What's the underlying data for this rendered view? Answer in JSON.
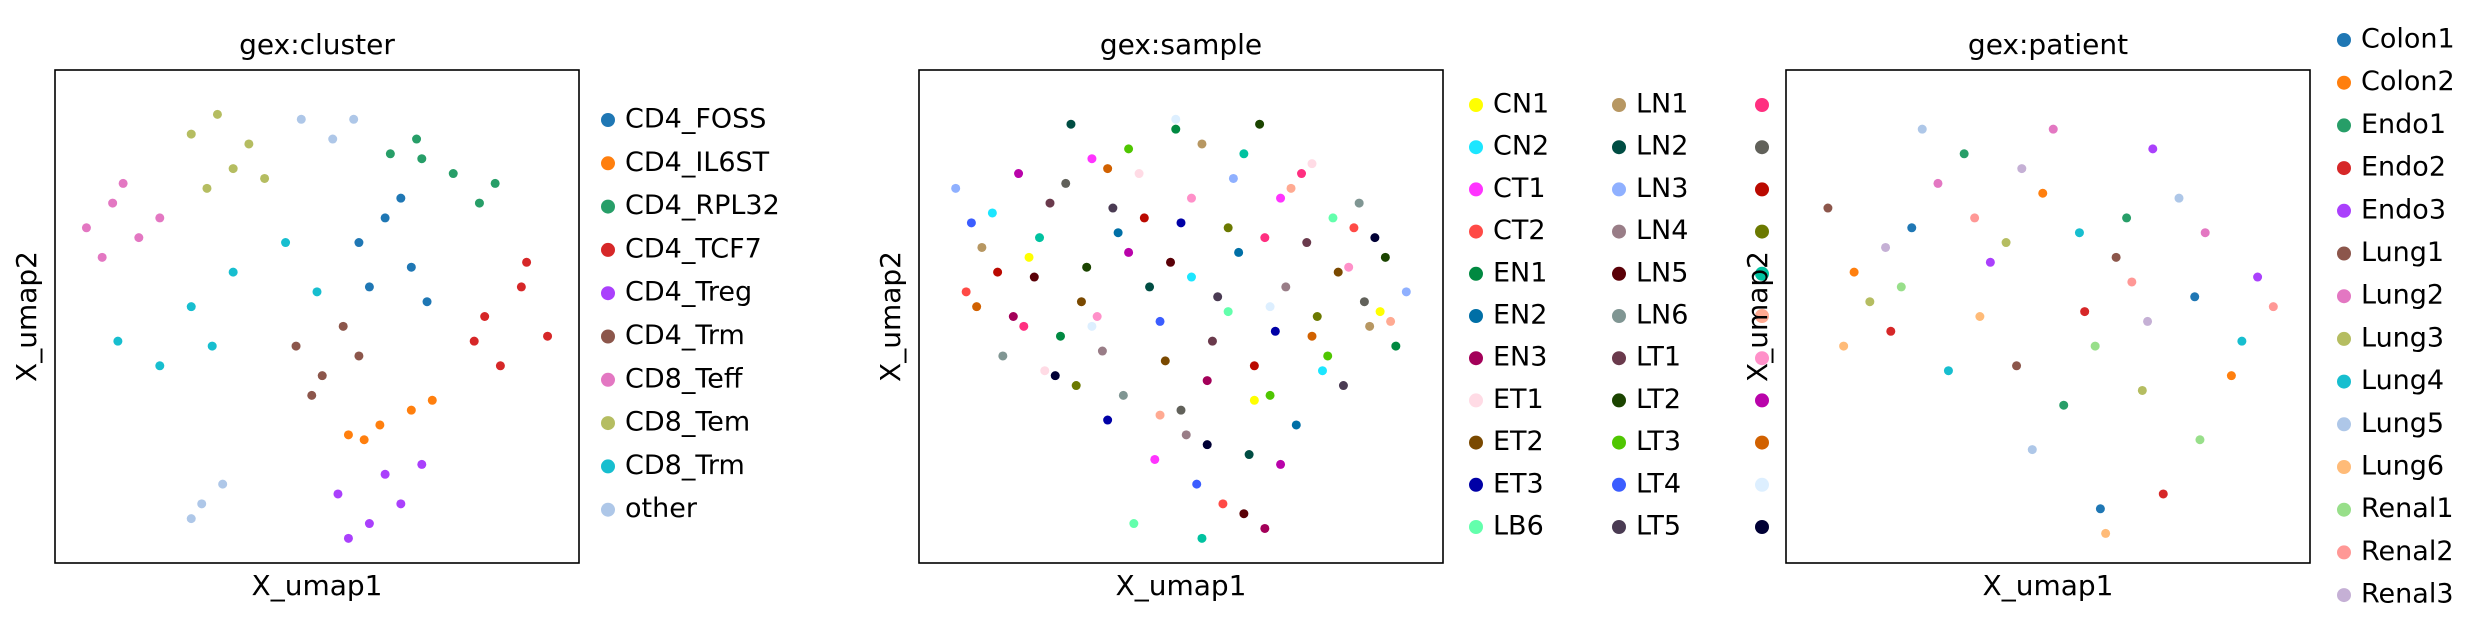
{
  "chart_data": [
    {
      "type": "scatter",
      "title": "gex:cluster",
      "x_label": "X_umap1",
      "y_label": "X_umap2",
      "xlim": [
        0,
        10
      ],
      "ylim": [
        0,
        10
      ],
      "series": [
        {
          "name": "CD4_FOSS",
          "color": "#1f77b4",
          "x": [
            5.8,
            6.3,
            6.8,
            7.1,
            6.0,
            6.6
          ],
          "y": [
            6.5,
            7.0,
            6.0,
            5.3,
            5.6,
            7.4
          ]
        },
        {
          "name": "CD4_IL6ST",
          "color": "#ff7f0e",
          "x": [
            5.6,
            6.2,
            6.8,
            7.2,
            5.9
          ],
          "y": [
            2.6,
            2.8,
            3.1,
            3.3,
            2.5
          ]
        },
        {
          "name": "CD4_RPL32",
          "color": "#279e68",
          "x": [
            6.4,
            7.0,
            7.6,
            8.1,
            8.4,
            6.9
          ],
          "y": [
            8.3,
            8.2,
            7.9,
            7.3,
            7.7,
            8.6
          ]
        },
        {
          "name": "CD4_TCF7",
          "color": "#d62728",
          "x": [
            8.2,
            8.9,
            9.4,
            8.5,
            9.0,
            8.0
          ],
          "y": [
            5.0,
            5.6,
            4.6,
            4.0,
            6.1,
            4.5
          ]
        },
        {
          "name": "CD4_Treg",
          "color": "#aa40fc",
          "x": [
            5.4,
            6.0,
            6.6,
            7.0,
            5.6,
            6.3
          ],
          "y": [
            1.4,
            0.8,
            1.2,
            2.0,
            0.5,
            1.8
          ]
        },
        {
          "name": "CD4_Trm",
          "color": "#8c564b",
          "x": [
            4.6,
            5.1,
            5.5,
            4.9,
            5.8
          ],
          "y": [
            4.4,
            3.8,
            4.8,
            3.4,
            4.2
          ]
        },
        {
          "name": "CD8_Teff",
          "color": "#e377c2",
          "x": [
            0.6,
            1.1,
            1.6,
            0.9,
            2.0,
            1.3
          ],
          "y": [
            6.8,
            7.3,
            6.6,
            6.2,
            7.0,
            7.7
          ]
        },
        {
          "name": "CD8_Tem",
          "color": "#b5bd61",
          "x": [
            2.6,
            3.1,
            3.7,
            2.9,
            4.0,
            3.4
          ],
          "y": [
            8.7,
            9.1,
            8.5,
            7.6,
            7.8,
            8.0
          ]
        },
        {
          "name": "CD8_Trm",
          "color": "#17becf",
          "x": [
            1.2,
            2.0,
            2.6,
            3.4,
            4.4,
            5.0,
            3.0
          ],
          "y": [
            4.5,
            4.0,
            5.2,
            5.9,
            6.5,
            5.5,
            4.4
          ]
        },
        {
          "name": "other",
          "color": "#aec7e8",
          "x": [
            4.7,
            5.3,
            5.7,
            2.8,
            3.2,
            2.6
          ],
          "y": [
            9.0,
            8.6,
            9.0,
            1.2,
            1.6,
            0.9
          ]
        }
      ]
    },
    {
      "type": "scatter",
      "title": "gex:sample",
      "x_label": "X_umap1",
      "y_label": "X_umap2",
      "xlim": [
        0,
        10
      ],
      "ylim": [
        0,
        10
      ],
      "series": [
        {
          "name": "CN1",
          "color": "#ffff00",
          "x": [
            2.1,
            6.4,
            8.8
          ],
          "y": [
            6.2,
            3.3,
            5.1
          ]
        },
        {
          "name": "CN2",
          "color": "#1ce6ff",
          "x": [
            1.4,
            5.2,
            7.7
          ],
          "y": [
            7.1,
            5.8,
            3.9
          ]
        },
        {
          "name": "CT1",
          "color": "#ff34ff",
          "x": [
            3.3,
            6.9,
            4.5
          ],
          "y": [
            8.2,
            7.4,
            2.1
          ]
        },
        {
          "name": "CT2",
          "color": "#ff4a46",
          "x": [
            0.9,
            5.8,
            8.3
          ],
          "y": [
            5.5,
            1.2,
            6.8
          ]
        },
        {
          "name": "EN1",
          "color": "#008941",
          "x": [
            2.7,
            4.9,
            9.1
          ],
          "y": [
            4.6,
            8.8,
            4.4
          ]
        },
        {
          "name": "EN2",
          "color": "#006fa6",
          "x": [
            3.8,
            6.1,
            7.2
          ],
          "y": [
            6.7,
            6.3,
            2.8
          ]
        },
        {
          "name": "EN3",
          "color": "#a30059",
          "x": [
            1.8,
            5.5,
            6.6
          ],
          "y": [
            5.0,
            3.7,
            0.7
          ]
        },
        {
          "name": "ET1",
          "color": "#ffdbe5",
          "x": [
            4.2,
            7.5,
            2.4
          ],
          "y": [
            7.9,
            8.1,
            3.9
          ]
        },
        {
          "name": "ET2",
          "color": "#7a4900",
          "x": [
            3.1,
            4.7,
            8.0
          ],
          "y": [
            5.3,
            4.1,
            5.9
          ]
        },
        {
          "name": "ET3",
          "color": "#0000a6",
          "x": [
            5.0,
            6.8,
            3.6
          ],
          "y": [
            6.9,
            4.7,
            2.9
          ]
        },
        {
          "name": "LB6",
          "color": "#63ffac",
          "x": [
            4.1,
            7.9,
            5.9
          ],
          "y": [
            0.8,
            7.0,
            5.1
          ]
        },
        {
          "name": "LN1",
          "color": "#b79762",
          "x": [
            1.2,
            5.4,
            8.6
          ],
          "y": [
            6.4,
            8.5,
            4.8
          ]
        },
        {
          "name": "LN2",
          "color": "#004d43",
          "x": [
            2.9,
            4.4,
            6.3
          ],
          "y": [
            8.9,
            5.6,
            2.2
          ]
        },
        {
          "name": "LN3",
          "color": "#8fb0ff",
          "x": [
            0.7,
            6.0,
            9.3
          ],
          "y": [
            7.6,
            7.8,
            5.5
          ]
        },
        {
          "name": "LN4",
          "color": "#997d87",
          "x": [
            3.5,
            5.1,
            7.0
          ],
          "y": [
            4.3,
            2.6,
            5.6
          ]
        },
        {
          "name": "LN5",
          "color": "#5a0007",
          "x": [
            2.2,
            4.8,
            6.2
          ],
          "y": [
            5.8,
            6.1,
            1.0
          ]
        },
        {
          "name": "LN6",
          "color": "#809693",
          "x": [
            1.6,
            3.9,
            8.4
          ],
          "y": [
            4.2,
            3.4,
            7.3
          ]
        },
        {
          "name": "LT1",
          "color": "#6a3a4c",
          "x": [
            2.5,
            5.6,
            7.4
          ],
          "y": [
            7.3,
            4.5,
            6.5
          ]
        },
        {
          "name": "LT2",
          "color": "#1b4400",
          "x": [
            3.2,
            6.5,
            8.9
          ],
          "y": [
            6.0,
            8.9,
            6.2
          ]
        },
        {
          "name": "LT3",
          "color": "#4fc601",
          "x": [
            4.0,
            7.8,
            6.7
          ],
          "y": [
            8.4,
            4.2,
            3.4
          ]
        },
        {
          "name": "LT4",
          "color": "#3b5dff",
          "x": [
            1.0,
            4.6,
            5.3
          ],
          "y": [
            6.9,
            4.9,
            1.6
          ]
        },
        {
          "name": "LT5",
          "color": "#4a3b53",
          "x": [
            3.7,
            5.7,
            8.1
          ],
          "y": [
            7.2,
            5.4,
            3.6
          ]
        },
        {
          "name": null,
          "color": "#ff2f80",
          "x": [
            2.0,
            6.6,
            7.3
          ],
          "y": [
            4.8,
            6.6,
            7.9
          ]
        },
        {
          "name": null,
          "color": "#61615a",
          "x": [
            2.8,
            5.0,
            8.5
          ],
          "y": [
            7.7,
            3.1,
            5.3
          ]
        },
        {
          "name": null,
          "color": "#ba0900",
          "x": [
            1.5,
            4.3,
            6.4
          ],
          "y": [
            5.9,
            7.0,
            4.0
          ]
        },
        {
          "name": null,
          "color": "#6b7900",
          "x": [
            3.0,
            5.9,
            7.6
          ],
          "y": [
            3.6,
            6.8,
            5.0
          ]
        },
        {
          "name": null,
          "color": "#00c2a0",
          "x": [
            2.3,
            6.2,
            5.4
          ],
          "y": [
            6.6,
            8.3,
            0.5
          ]
        },
        {
          "name": null,
          "color": "#ffaa92",
          "x": [
            4.6,
            7.1,
            9.0
          ],
          "y": [
            3.0,
            7.6,
            4.9
          ]
        },
        {
          "name": null,
          "color": "#ff90c9",
          "x": [
            3.4,
            5.2,
            8.2
          ],
          "y": [
            5.0,
            7.4,
            6.0
          ]
        },
        {
          "name": null,
          "color": "#b903aa",
          "x": [
            1.9,
            4.0,
            6.9
          ],
          "y": [
            7.9,
            6.3,
            2.0
          ]
        },
        {
          "name": null,
          "color": "#d16100",
          "x": [
            1.1,
            3.6,
            7.5
          ],
          "y": [
            5.2,
            8.0,
            4.6
          ]
        },
        {
          "name": null,
          "color": "#ddefff",
          "x": [
            4.9,
            6.7,
            3.3
          ],
          "y": [
            9.0,
            5.2,
            4.8
          ]
        },
        {
          "name": null,
          "color": "#000035",
          "x": [
            2.6,
            5.5,
            8.7
          ],
          "y": [
            3.8,
            2.4,
            6.6
          ]
        }
      ]
    },
    {
      "type": "scatter",
      "title": "gex:patient",
      "x_label": "X_umap1",
      "y_label": "X_umap2",
      "xlim": [
        0,
        10
      ],
      "ylim": [
        0,
        10
      ],
      "series": [
        {
          "name": "Colon1",
          "color": "#1f77b4",
          "x": [
            2.4,
            6.0,
            7.8
          ],
          "y": [
            6.8,
            1.1,
            5.4
          ]
        },
        {
          "name": "Colon2",
          "color": "#ff7f0e",
          "x": [
            1.3,
            4.9,
            8.5
          ],
          "y": [
            5.9,
            7.5,
            3.8
          ]
        },
        {
          "name": "Endo1",
          "color": "#279e68",
          "x": [
            3.4,
            6.5,
            5.3
          ],
          "y": [
            8.3,
            7.0,
            3.2
          ]
        },
        {
          "name": "Endo2",
          "color": "#d62728",
          "x": [
            2.0,
            5.7,
            7.2
          ],
          "y": [
            4.7,
            5.1,
            1.4
          ]
        },
        {
          "name": "Endo3",
          "color": "#aa40fc",
          "x": [
            3.9,
            7.0,
            9.0
          ],
          "y": [
            6.1,
            8.4,
            5.8
          ]
        },
        {
          "name": "Lung1",
          "color": "#8c564b",
          "x": [
            0.8,
            4.4,
            6.3
          ],
          "y": [
            7.2,
            4.0,
            6.2
          ]
        },
        {
          "name": "Lung2",
          "color": "#e377c2",
          "x": [
            2.9,
            5.1,
            8.0
          ],
          "y": [
            7.7,
            8.8,
            6.7
          ]
        },
        {
          "name": "Lung3",
          "color": "#b5bd61",
          "x": [
            1.6,
            4.2,
            6.8
          ],
          "y": [
            5.3,
            6.5,
            3.5
          ]
        },
        {
          "name": "Lung4",
          "color": "#17becf",
          "x": [
            3.1,
            5.6,
            8.7
          ],
          "y": [
            3.9,
            6.7,
            4.5
          ]
        },
        {
          "name": "Lung5",
          "color": "#aec7e8",
          "x": [
            2.6,
            4.7,
            7.5
          ],
          "y": [
            8.8,
            2.3,
            7.4
          ]
        },
        {
          "name": "Lung6",
          "color": "#ffbb78",
          "x": [
            1.1,
            3.7,
            6.1
          ],
          "y": [
            4.4,
            5.0,
            0.6
          ]
        },
        {
          "name": "Renal1",
          "color": "#98df8a",
          "x": [
            2.2,
            5.9,
            7.9
          ],
          "y": [
            5.6,
            4.4,
            2.5
          ]
        },
        {
          "name": "Renal2",
          "color": "#ff9896",
          "x": [
            3.6,
            6.6,
            9.3
          ],
          "y": [
            7.0,
            5.7,
            5.2
          ]
        },
        {
          "name": "Renal3",
          "color": "#c5b0d5",
          "x": [
            1.9,
            4.5,
            6.9
          ],
          "y": [
            6.4,
            8.0,
            4.9
          ]
        }
      ]
    }
  ]
}
